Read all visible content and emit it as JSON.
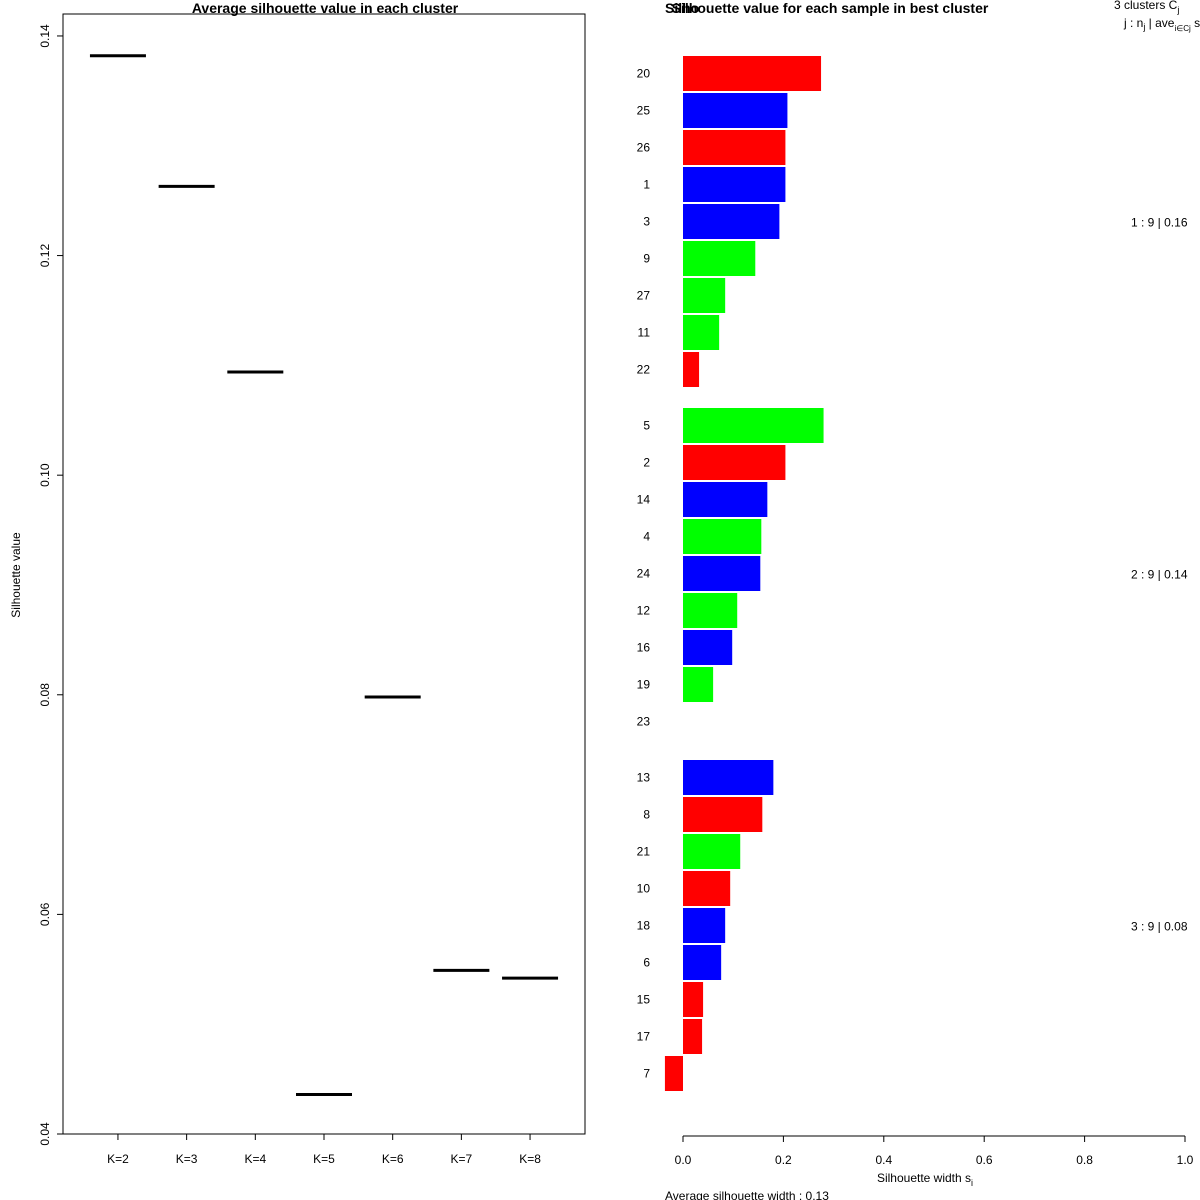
{
  "colors": {
    "red": "#ff0000",
    "blue": "#0000ff",
    "green": "#00ff00",
    "line": "#000000"
  },
  "chart_data": [
    {
      "type": "line",
      "title": "Average silhouette value in each cluster",
      "ylabel": "Silhouette value",
      "xlabel": "",
      "ylim": [
        0.04,
        0.142
      ],
      "y_ticks": [
        "0.04",
        "0.06",
        "0.08",
        "0.10",
        "0.12",
        "0.14"
      ],
      "y_tick_values": [
        0.04,
        0.06,
        0.08,
        0.1,
        0.12,
        0.14
      ],
      "categories": [
        "K=2",
        "K=3",
        "K=4",
        "K=5",
        "K=6",
        "K=7",
        "K=8"
      ],
      "values": [
        0.1382,
        0.1263,
        0.1094,
        0.0436,
        0.0798,
        0.0549,
        0.0542
      ]
    },
    {
      "type": "bar",
      "title": "Silhouette value for each sample in best cluster",
      "overlap_title_fragment": "Silho",
      "xlabel": "Silhouette width s",
      "xlabel_sub": "i",
      "xlim": [
        0.0,
        1.0
      ],
      "x_ticks": [
        "0.0",
        "0.2",
        "0.4",
        "0.6",
        "0.8",
        "1.0"
      ],
      "x_tick_values": [
        0.0,
        0.2,
        0.4,
        0.6,
        0.8,
        1.0
      ],
      "header_line1": "3  clusters  C",
      "header_line1_sub": "j",
      "header_line2": "j :  n",
      "header_line2_sub1": "j",
      "header_line2_mid": " | ave",
      "header_line2_sub2": "i∈Cj",
      "header_line2_end": "  s",
      "footer": "Average silhouette width :  0.13",
      "clusters": [
        {
          "summary": "1 :  9  |  0.16",
          "samples": [
            {
              "label": "20",
              "value": 0.275,
              "color": "red"
            },
            {
              "label": "25",
              "value": 0.208,
              "color": "blue"
            },
            {
              "label": "26",
              "value": 0.204,
              "color": "red"
            },
            {
              "label": "1",
              "value": 0.204,
              "color": "blue"
            },
            {
              "label": "3",
              "value": 0.192,
              "color": "blue"
            },
            {
              "label": "9",
              "value": 0.144,
              "color": "green"
            },
            {
              "label": "27",
              "value": 0.084,
              "color": "green"
            },
            {
              "label": "11",
              "value": 0.072,
              "color": "green"
            },
            {
              "label": "22",
              "value": 0.032,
              "color": "red"
            }
          ]
        },
        {
          "summary": "2 :  9  |  0.14",
          "samples": [
            {
              "label": "5",
              "value": 0.28,
              "color": "green"
            },
            {
              "label": "2",
              "value": 0.204,
              "color": "red"
            },
            {
              "label": "14",
              "value": 0.168,
              "color": "blue"
            },
            {
              "label": "4",
              "value": 0.156,
              "color": "green"
            },
            {
              "label": "24",
              "value": 0.154,
              "color": "blue"
            },
            {
              "label": "12",
              "value": 0.108,
              "color": "green"
            },
            {
              "label": "16",
              "value": 0.098,
              "color": "blue"
            },
            {
              "label": "19",
              "value": 0.06,
              "color": "green"
            },
            {
              "label": "23",
              "value": 0.0,
              "color": "green"
            }
          ]
        },
        {
          "summary": "3 :  9  |  0.08",
          "samples": [
            {
              "label": "13",
              "value": 0.18,
              "color": "blue"
            },
            {
              "label": "8",
              "value": 0.158,
              "color": "red"
            },
            {
              "label": "21",
              "value": 0.114,
              "color": "green"
            },
            {
              "label": "10",
              "value": 0.094,
              "color": "red"
            },
            {
              "label": "18",
              "value": 0.084,
              "color": "blue"
            },
            {
              "label": "6",
              "value": 0.076,
              "color": "blue"
            },
            {
              "label": "15",
              "value": 0.04,
              "color": "red"
            },
            {
              "label": "17",
              "value": 0.038,
              "color": "red"
            },
            {
              "label": "7",
              "value": -0.036,
              "color": "red"
            }
          ]
        }
      ]
    }
  ]
}
